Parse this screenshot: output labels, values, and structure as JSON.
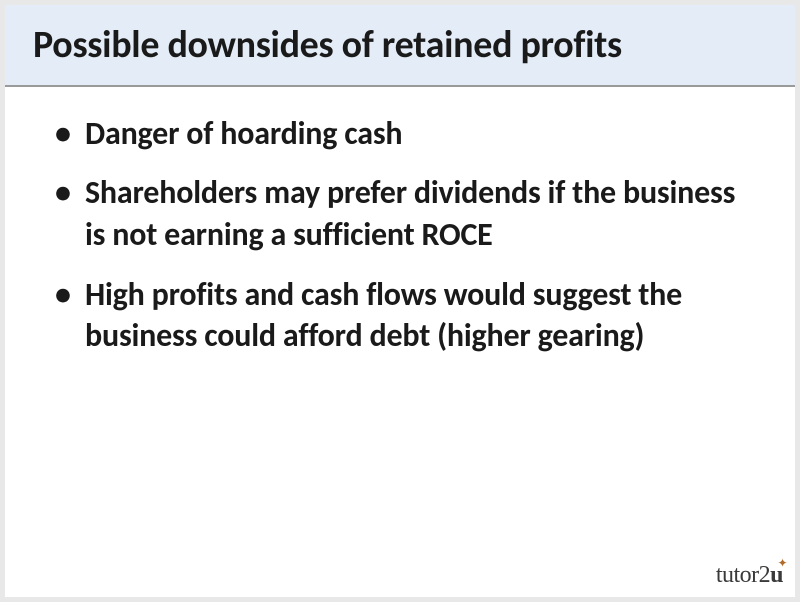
{
  "slide": {
    "background_color": "#ffffff",
    "border_color": "#e8e8e8",
    "title_box": {
      "background_color": "#e3ecf7",
      "border_bottom_color": "#9a9a9a",
      "title": "Possible downsides of retained profits",
      "title_fontsize": 38,
      "title_fontweight": 700,
      "title_color": "#1a1a1a"
    },
    "bullets": {
      "fontsize": 32,
      "fontweight": 700,
      "color": "#1a1a1a",
      "marker": "•",
      "items": [
        "Danger of hoarding cash",
        "Shareholders may prefer dividends if the business is not earning a sufficient ROCE",
        "High profits and cash flows would suggest the business could afford debt (higher gearing)"
      ]
    },
    "logo": {
      "prefix": "tutor2",
      "suffix": "u",
      "color": "#3a3a3a",
      "fontsize": 24,
      "flourish_color": "#b06a2a"
    }
  }
}
